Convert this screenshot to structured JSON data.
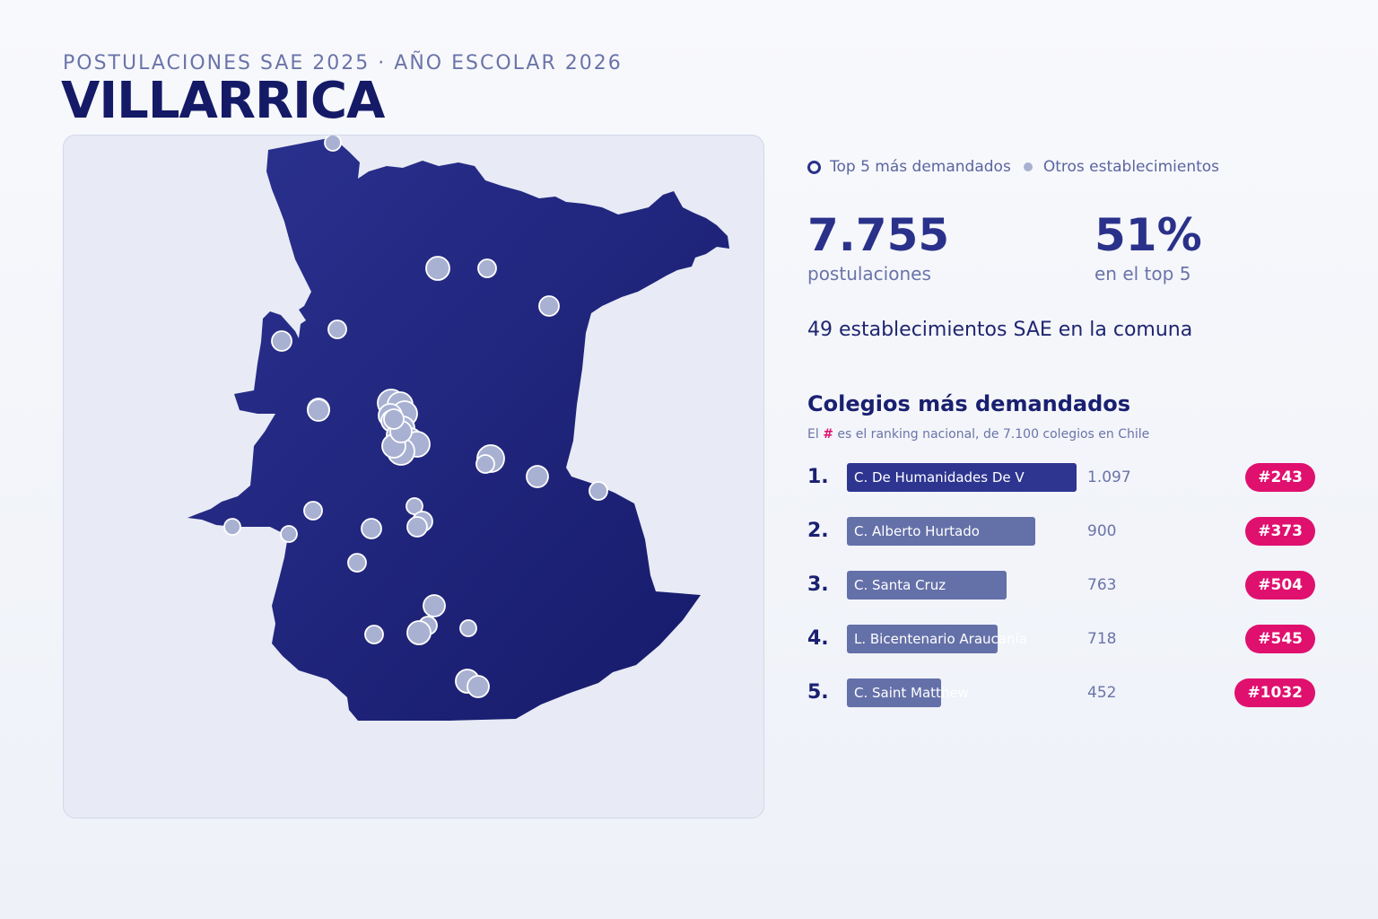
{
  "header": {
    "kicker": "POSTULACIONES SAE 2025 · AÑO ESCOLAR 2026",
    "title": "VILLARRICA"
  },
  "legend": {
    "top5_label": "Top 5 más demandados",
    "others_label": "Otros establecimientos"
  },
  "stats": {
    "applications_value": "7.755",
    "applications_label": "postulaciones",
    "top5_share_value": "51%",
    "top5_share_label": "en el top 5"
  },
  "schools_count_text": "49 establecimientos SAE en la comuna",
  "ranking": {
    "title": "Colegios más demandados",
    "note_prefix": "El ",
    "note_hash": "#",
    "note_suffix": " es el ranking nacional, de 7.100 colegios en Chile",
    "max_value": 1097,
    "items": [
      {
        "rank": "1.",
        "name": "C. De Humanidades De V",
        "value": 1097,
        "display": "1.097",
        "national": "#243"
      },
      {
        "rank": "2.",
        "name": "C. Alberto Hurtado",
        "value": 900,
        "display": "900",
        "national": "#373"
      },
      {
        "rank": "3.",
        "name": "C. Santa Cruz",
        "value": 763,
        "display": "763",
        "national": "#504"
      },
      {
        "rank": "4.",
        "name": "L. Bicentenario Araucanía",
        "value": 718,
        "display": "718",
        "national": "#545"
      },
      {
        "rank": "5.",
        "name": "C. Saint Matthew",
        "value": 452,
        "display": "452",
        "national": "#1032"
      }
    ]
  },
  "map": {
    "region_color": "#23297f",
    "marker_fill": "#a9b1d2",
    "marker_stroke": "#ffffff"
  }
}
